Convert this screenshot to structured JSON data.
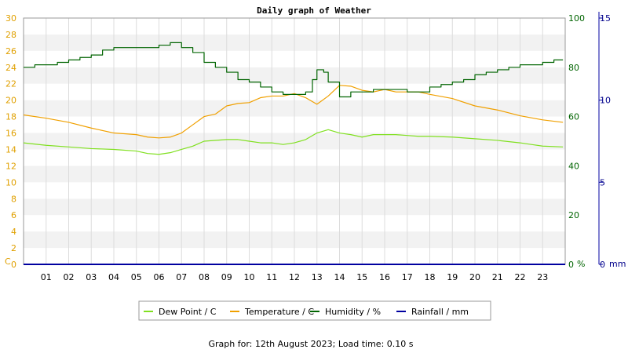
{
  "chart_data": {
    "type": "line",
    "title": "Daily graph of Weather",
    "footer": "Graph for: 12th August 2023; Load time: 0.10 s",
    "x_ticks": [
      "01",
      "02",
      "03",
      "04",
      "05",
      "06",
      "07",
      "08",
      "09",
      "10",
      "11",
      "12",
      "13",
      "14",
      "15",
      "16",
      "17",
      "18",
      "19",
      "20",
      "21",
      "22",
      "23"
    ],
    "x_range": [
      0,
      24
    ],
    "grid": true,
    "legend_position": "bottom-center",
    "axes": {
      "left": {
        "unit": "C",
        "range": [
          0,
          30
        ],
        "ticks": [
          "0",
          "2",
          "4",
          "6",
          "8",
          "10",
          "12",
          "14",
          "16",
          "18",
          "20",
          "22",
          "24",
          "26",
          "28",
          "30"
        ],
        "color": "#e0a000"
      },
      "right1": {
        "unit": "%",
        "range": [
          0,
          100
        ],
        "ticks": [
          "0",
          "20",
          "40",
          "60",
          "80",
          "100"
        ],
        "color": "#006400"
      },
      "right2": {
        "unit": "mm",
        "range": [
          0,
          15
        ],
        "ticks": [
          "0",
          "5",
          "10",
          "15"
        ],
        "color": "#00008b"
      }
    },
    "series": [
      {
        "name": "Dew Point / C",
        "axis": "left",
        "color": "#80e020",
        "x": [
          0,
          1,
          2,
          3,
          4,
          5,
          5.5,
          6,
          6.5,
          7,
          7.5,
          8,
          9,
          9.5,
          10,
          10.5,
          11,
          11.5,
          12,
          12.5,
          13,
          13.5,
          14,
          14.5,
          15,
          15.5,
          16,
          16.5,
          17,
          17.5,
          18,
          19,
          20,
          21,
          22,
          22.5,
          23,
          23.9
        ],
        "y": [
          14.8,
          14.5,
          14.3,
          14.1,
          14.0,
          13.8,
          13.5,
          13.4,
          13.6,
          14.0,
          14.4,
          15.0,
          15.2,
          15.2,
          15.0,
          14.8,
          14.8,
          14.6,
          14.8,
          15.2,
          16.0,
          16.4,
          16.0,
          15.8,
          15.5,
          15.8,
          15.8,
          15.8,
          15.7,
          15.6,
          15.6,
          15.5,
          15.3,
          15.1,
          14.8,
          14.6,
          14.4,
          14.3
        ]
      },
      {
        "name": "Temperature / C",
        "axis": "left",
        "color": "#f0a000",
        "x": [
          0,
          1,
          2,
          3,
          4,
          5,
          5.5,
          6,
          6.5,
          7,
          7.5,
          8,
          8.5,
          9,
          9.5,
          10,
          10.5,
          11,
          11.5,
          12,
          12.5,
          13,
          13.5,
          14,
          14.5,
          15,
          15.5,
          16,
          16.5,
          17,
          17.5,
          18,
          19,
          20,
          21,
          22,
          23,
          23.9
        ],
        "y": [
          18.2,
          17.8,
          17.3,
          16.6,
          16.0,
          15.8,
          15.5,
          15.4,
          15.5,
          16.0,
          17.0,
          18.0,
          18.3,
          19.3,
          19.6,
          19.7,
          20.3,
          20.5,
          20.5,
          20.8,
          20.3,
          19.5,
          20.5,
          21.8,
          21.7,
          21.2,
          21.0,
          21.3,
          21.0,
          21.0,
          21.0,
          20.7,
          20.2,
          19.3,
          18.8,
          18.1,
          17.6,
          17.3
        ]
      },
      {
        "name": "Humidity / %",
        "axis": "right1",
        "color": "#006400",
        "x": [
          0,
          0.5,
          1,
          1.5,
          2,
          2.5,
          3,
          3.5,
          4,
          4.5,
          5,
          5.5,
          6,
          6.5,
          7,
          7.5,
          8,
          8.5,
          9,
          9.5,
          10,
          10.5,
          11,
          11.5,
          12,
          12.5,
          12.8,
          13,
          13.3,
          13.5,
          14,
          14.5,
          15,
          15.5,
          16,
          16.5,
          17,
          17.5,
          18,
          18.5,
          19,
          19.5,
          20,
          20.5,
          21,
          21.5,
          22,
          22.5,
          23,
          23.5,
          23.9
        ],
        "y": [
          80,
          81,
          81,
          82,
          83,
          84,
          85,
          87,
          88,
          88,
          88,
          88,
          89,
          90,
          88,
          86,
          82,
          80,
          78,
          75,
          74,
          72,
          70,
          69,
          69,
          70,
          75,
          79,
          78,
          74,
          68,
          70,
          70,
          71,
          71,
          71,
          70,
          70,
          72,
          73,
          74,
          75,
          77,
          78,
          79,
          80,
          81,
          81,
          82,
          83,
          83
        ]
      },
      {
        "name": "Rainfall / mm",
        "axis": "right2",
        "color": "#0000a0",
        "x": [
          0,
          24
        ],
        "y": [
          0,
          0
        ]
      }
    ]
  }
}
